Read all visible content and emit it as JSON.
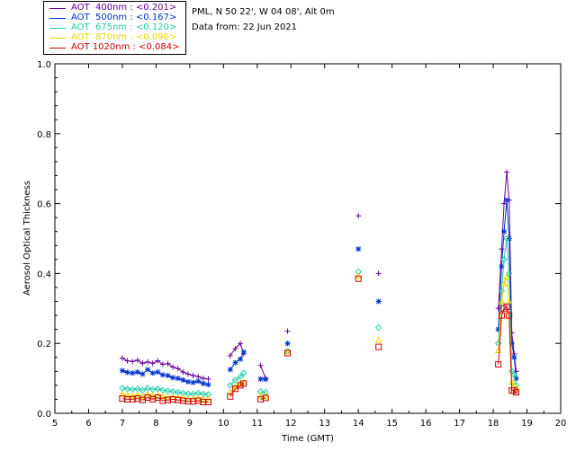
{
  "legend": [
    {
      "label": "AOT  400nm : <0.201>",
      "color": "#660099"
    },
    {
      "label": "AOT  500nm : <0.167>",
      "color": "#0033cc"
    },
    {
      "label": "AOT  675nm : <0.120>",
      "color": "#22ccaa"
    },
    {
      "label": "AOT  870nm : <0.096>",
      "color": "#e6d600"
    },
    {
      "label": "AOT 1020nm : <0.084>",
      "color": "#cc0000"
    }
  ],
  "info": {
    "site": "PML, N 50 22', W 04 08', Alt 0m",
    "date": "Data from: 22 Jun 2021"
  },
  "chart_data": {
    "type": "scatter",
    "title": "",
    "xlabel": "Time (GMT)",
    "ylabel": "Aerosol Optical Thickness",
    "xlim": [
      5,
      20
    ],
    "ylim": [
      0.0,
      1.0
    ],
    "xticks": [
      5,
      6,
      7,
      8,
      9,
      10,
      11,
      12,
      13,
      14,
      15,
      16,
      17,
      18,
      19,
      20
    ],
    "xtick_labels": [
      "5",
      "6",
      "7",
      "8",
      "9",
      "10",
      "11",
      "12",
      "13",
      "14",
      "15",
      "16",
      "17",
      "18",
      "19",
      "20"
    ],
    "yticks": [
      0.0,
      0.2,
      0.4,
      0.6,
      0.8,
      1.0
    ],
    "ytick_labels": [
      "0.0",
      "0.2",
      "0.4",
      "0.6",
      "0.8",
      "1.0"
    ],
    "x": [
      7.0,
      7.15,
      7.3,
      7.45,
      7.6,
      7.75,
      7.9,
      8.05,
      8.2,
      8.35,
      8.5,
      8.65,
      8.8,
      8.95,
      9.1,
      9.25,
      9.4,
      9.55,
      10.2,
      10.35,
      10.5,
      10.6,
      11.1,
      11.25,
      11.9,
      14.0,
      14.6,
      18.15,
      18.25,
      18.32,
      18.4,
      18.47,
      18.55,
      18.62,
      18.68
    ],
    "segment_breaks": [
      18,
      22,
      24,
      25,
      26,
      27
    ],
    "series": [
      {
        "name": "AOT 400nm",
        "marker": "plus",
        "values": [
          0.158,
          0.15,
          0.148,
          0.152,
          0.143,
          0.147,
          0.143,
          0.15,
          0.14,
          0.142,
          0.132,
          0.128,
          0.118,
          0.112,
          0.108,
          0.105,
          0.1,
          0.098,
          0.165,
          0.185,
          0.2,
          0.17,
          0.137,
          0.1,
          0.235,
          0.565,
          0.4,
          0.3,
          0.47,
          0.6,
          0.69,
          0.61,
          0.23,
          0.17,
          0.12
        ]
      },
      {
        "name": "AOT 500nm",
        "marker": "asterisk",
        "values": [
          0.122,
          0.117,
          0.115,
          0.118,
          0.112,
          0.125,
          0.115,
          0.118,
          0.11,
          0.108,
          0.102,
          0.1,
          0.095,
          0.09,
          0.088,
          0.092,
          0.085,
          0.082,
          0.125,
          0.145,
          0.155,
          0.175,
          0.098,
          0.097,
          0.2,
          0.47,
          0.32,
          0.24,
          0.42,
          0.52,
          0.61,
          0.5,
          0.2,
          0.16,
          0.1
        ]
      },
      {
        "name": "AOT 675nm",
        "marker": "diamond",
        "values": [
          0.072,
          0.07,
          0.068,
          0.07,
          0.066,
          0.072,
          0.068,
          0.07,
          0.066,
          0.064,
          0.062,
          0.06,
          0.058,
          0.056,
          0.055,
          0.058,
          0.055,
          0.054,
          0.08,
          0.095,
          0.105,
          0.115,
          0.062,
          0.06,
          0.178,
          0.405,
          0.245,
          0.2,
          0.35,
          0.44,
          0.5,
          0.4,
          0.12,
          0.11,
          0.08
        ]
      },
      {
        "name": "AOT 870nm",
        "marker": "triangle",
        "values": [
          0.055,
          0.052,
          0.05,
          0.052,
          0.049,
          0.055,
          0.05,
          0.052,
          0.048,
          0.047,
          0.046,
          0.045,
          0.044,
          0.042,
          0.041,
          0.043,
          0.041,
          0.04,
          0.06,
          0.075,
          0.085,
          0.09,
          0.05,
          0.048,
          0.176,
          0.393,
          0.21,
          0.18,
          0.32,
          0.37,
          0.39,
          0.32,
          0.09,
          0.08,
          0.07
        ]
      },
      {
        "name": "AOT 1020nm",
        "marker": "square",
        "values": [
          0.042,
          0.04,
          0.04,
          0.042,
          0.038,
          0.045,
          0.04,
          0.045,
          0.036,
          0.038,
          0.04,
          0.038,
          0.036,
          0.034,
          0.034,
          0.036,
          0.032,
          0.032,
          0.048,
          0.07,
          0.08,
          0.085,
          0.04,
          0.044,
          0.172,
          0.385,
          0.19,
          0.14,
          0.28,
          0.3,
          0.305,
          0.28,
          0.065,
          0.065,
          0.06
        ]
      }
    ]
  }
}
